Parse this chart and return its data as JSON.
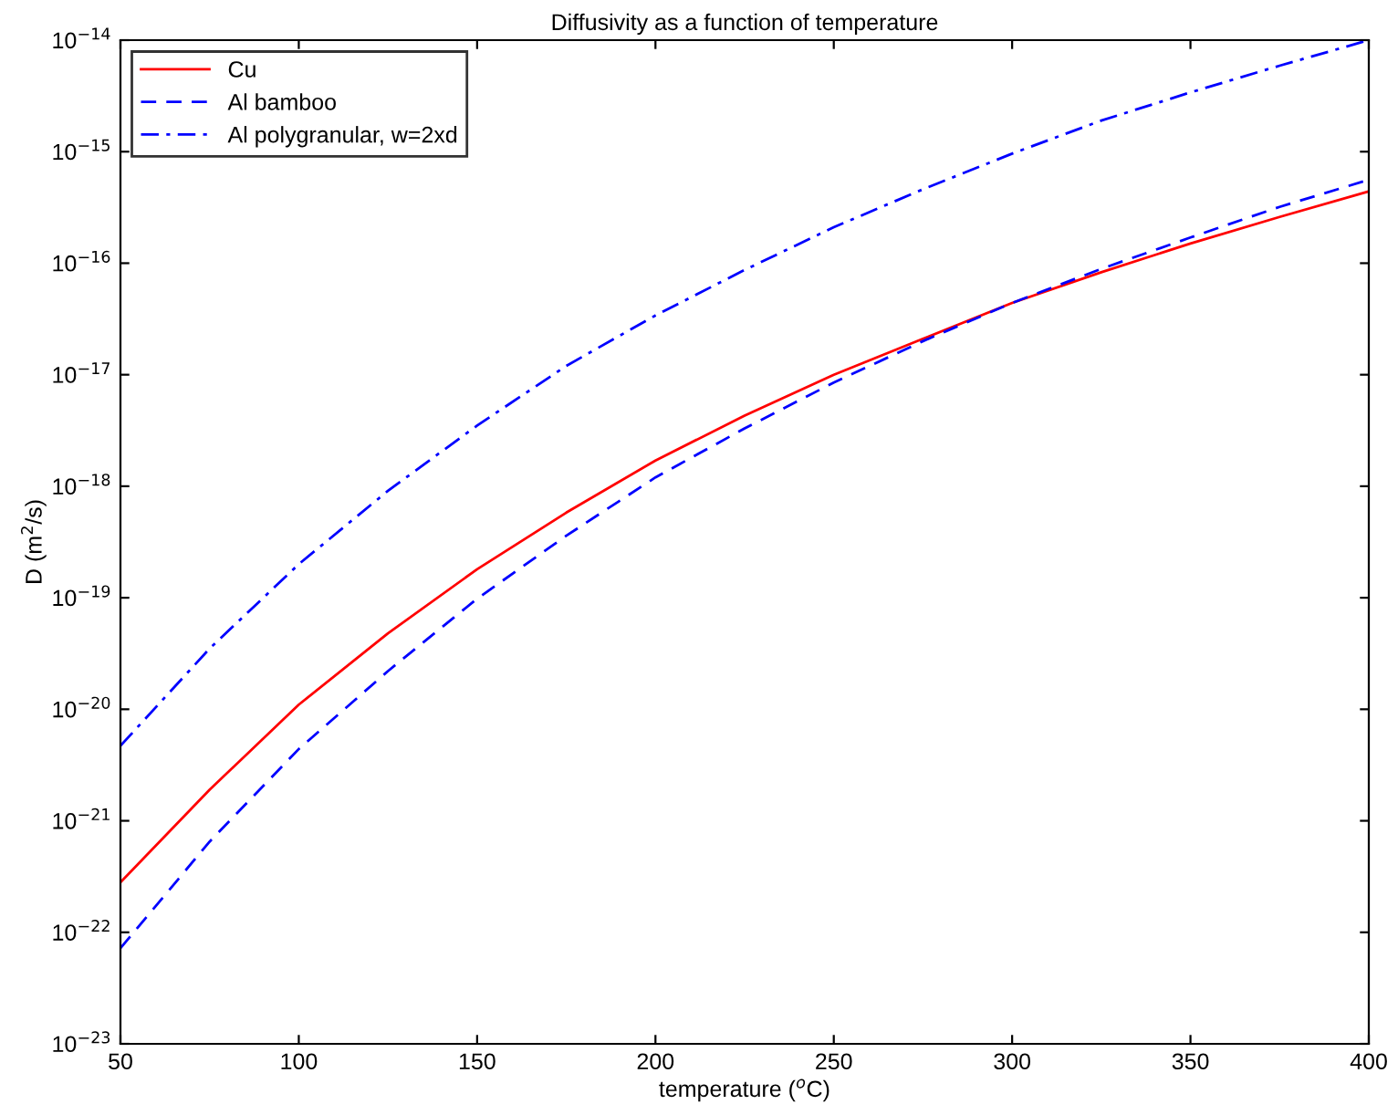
{
  "chart_data": {
    "type": "line",
    "title": "Diffusivity as a function of temperature",
    "xlabel": "temperature ($^{o}$C)",
    "ylabel": "D (m$^{2}$/s)",
    "x": [
      50,
      75,
      100,
      125,
      150,
      175,
      200,
      225,
      250,
      275,
      300,
      325,
      350,
      375,
      400
    ],
    "series": [
      {
        "name": "Cu",
        "color": "#ff0000",
        "line_style": "solid",
        "values": [
          2.8e-22,
          1.9e-21,
          1.1e-20,
          4.8e-20,
          1.8e-19,
          5.8e-19,
          1.7e-18,
          4.3e-18,
          1e-17,
          2.1e-17,
          4.4e-17,
          8.3e-17,
          1.5e-16,
          2.6e-16,
          4.4e-16
        ]
      },
      {
        "name": "Al bamboo",
        "color": "#0000ff",
        "line_style": "dashed",
        "values": [
          7.2e-23,
          6.5e-22,
          4.4e-21,
          2.2e-20,
          9.8e-20,
          3.6e-19,
          1.2e-18,
          3.3e-18,
          8.5e-18,
          2e-17,
          4.4e-17,
          8.9e-17,
          1.7e-16,
          3.2e-16,
          5.6e-16
        ]
      },
      {
        "name": "Al polygranular, w=2xd",
        "color": "#0000ff",
        "line_style": "dashdot",
        "values": [
          4.7e-21,
          3.5e-20,
          2e-19,
          9.1e-19,
          3.5e-18,
          1.2e-17,
          3.4e-17,
          8.7e-17,
          2.1e-16,
          4.6e-16,
          9.6e-16,
          1.9e-15,
          3.4e-15,
          5.9e-15,
          1e-14
        ]
      }
    ],
    "log": "y",
    "xlim": [
      50,
      400
    ],
    "xticks": [
      50,
      100,
      150,
      200,
      250,
      300,
      350,
      400
    ],
    "ylim": [
      1e-23,
      1e-14
    ],
    "yticks": [
      {
        "value": 1e-23,
        "label": "10$^{−23}$"
      },
      {
        "value": 1e-22,
        "label": "10$^{−22}$"
      },
      {
        "value": 1e-21,
        "label": "10$^{−21}$"
      },
      {
        "value": 1e-20,
        "label": "10$^{−20}$"
      },
      {
        "value": 1e-19,
        "label": "10$^{−19}$"
      },
      {
        "value": 1e-18,
        "label": "10$^{−18}$"
      },
      {
        "value": 1e-17,
        "label": "10$^{−17}$"
      },
      {
        "value": 1e-16,
        "label": "10$^{−16}$"
      },
      {
        "value": 1e-15,
        "label": "10$^{−15}$"
      },
      {
        "value": 1e-14,
        "label": "10$^{−14}$"
      }
    ],
    "grid": false,
    "legend": "top left"
  }
}
